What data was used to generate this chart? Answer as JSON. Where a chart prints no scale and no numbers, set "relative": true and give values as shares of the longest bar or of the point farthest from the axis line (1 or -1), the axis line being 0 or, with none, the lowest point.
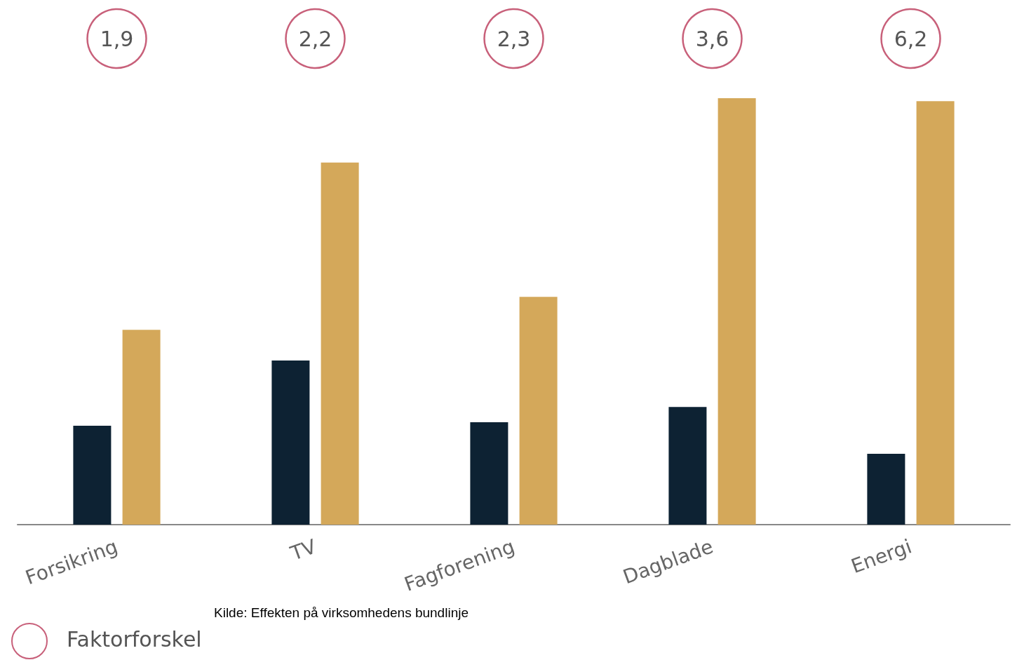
{
  "chart_data": {
    "type": "bar",
    "relative": true,
    "categories": [
      "Forsikring",
      "TV",
      "Fagforening",
      "Dagblade",
      "Energi"
    ],
    "series": [
      {
        "color": "#0d2233",
        "values": [
          0.232,
          0.385,
          0.24,
          0.276,
          0.166
        ]
      },
      {
        "color": "#d4a85a",
        "values": [
          0.457,
          0.849,
          0.534,
          1,
          0.993
        ]
      }
    ],
    "legend_title": "Faktorforskel",
    "annotations": [
      "1,9",
      "2,2",
      "2,3",
      "3,6",
      "6,2",
      "Kilde: Effekten på virksomhedens bundlinje"
    ]
  }
}
